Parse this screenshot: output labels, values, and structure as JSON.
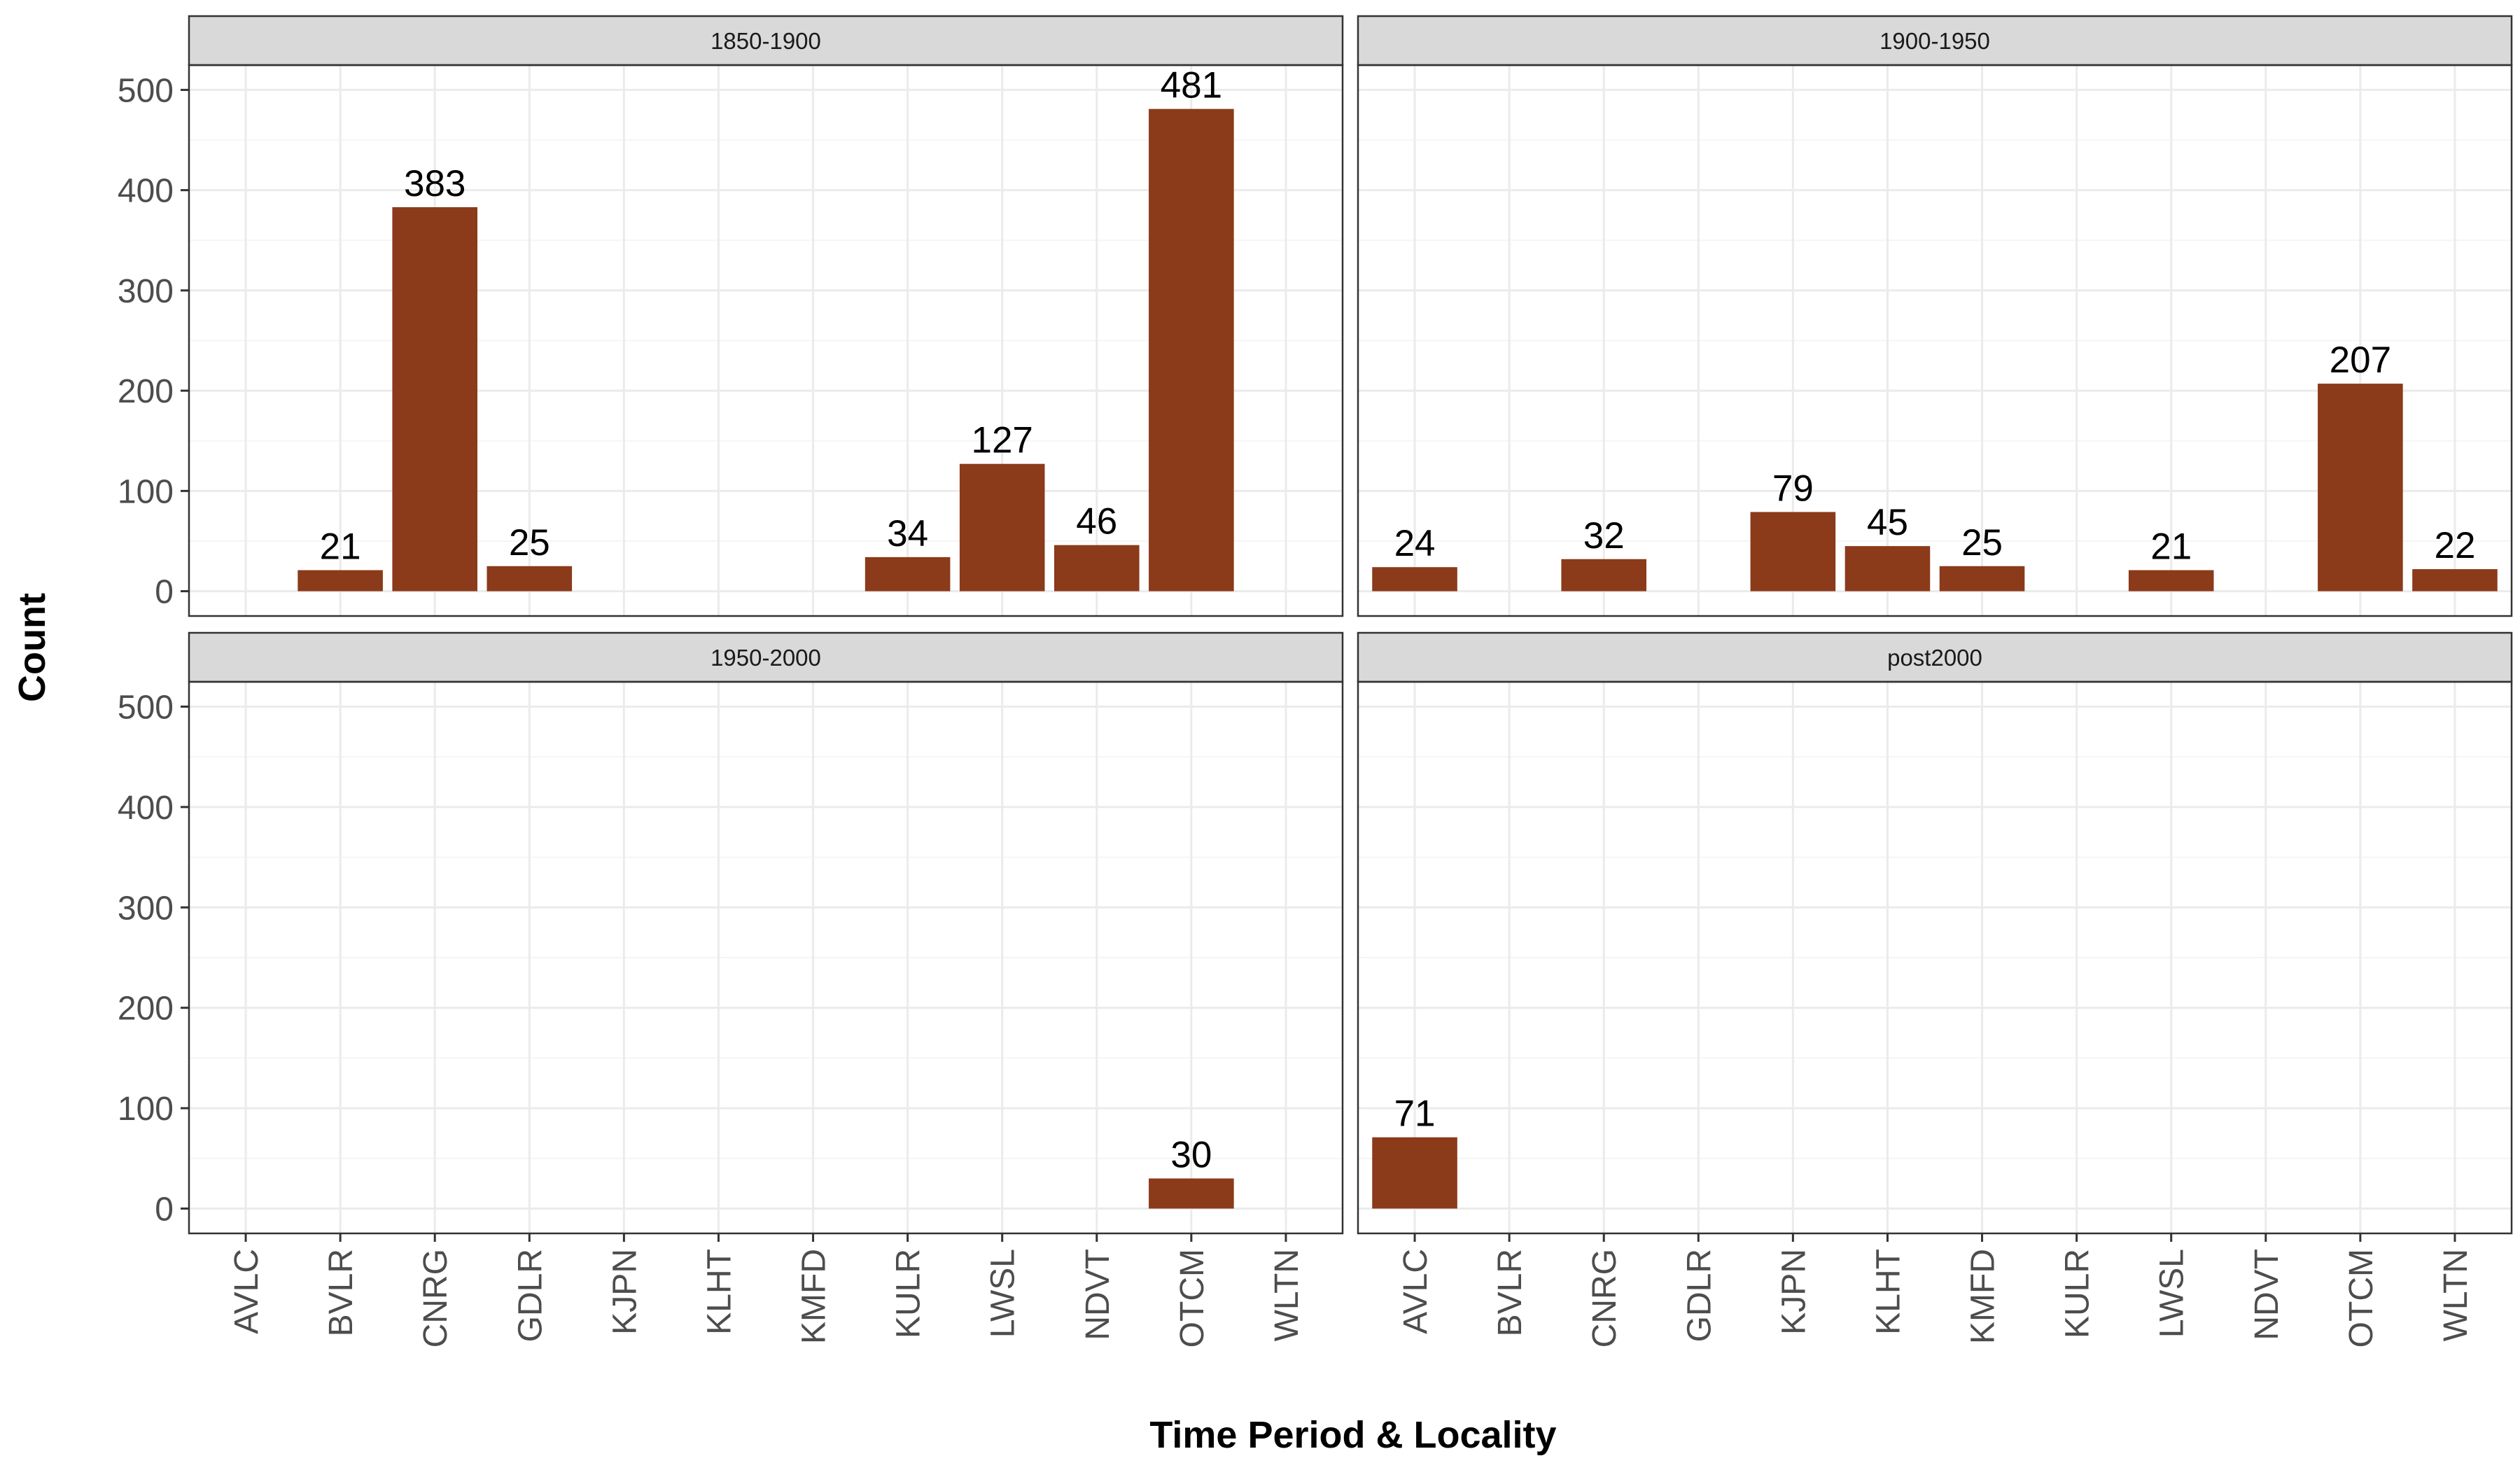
{
  "chart_data": {
    "type": "bar",
    "facet_layout": "2x2 grid, shared axes",
    "xlabel": "Time Period & Locality",
    "ylabel": "Count",
    "ylim": [
      0,
      500
    ],
    "y_ticks": [
      0,
      100,
      200,
      300,
      400,
      500
    ],
    "grid": true,
    "legend": "none",
    "categories": [
      "AVLC",
      "BVLR",
      "CNRG",
      "GDLR",
      "KJPN",
      "KLHT",
      "KMFD",
      "KULR",
      "LWSL",
      "NDVT",
      "OTCM",
      "WLTN"
    ],
    "panels": [
      {
        "strip": "1850-1900",
        "values": [
          null,
          21,
          383,
          25,
          null,
          null,
          null,
          34,
          127,
          46,
          481,
          null
        ],
        "labels": [
          "",
          "21",
          "383",
          "25",
          "",
          "",
          "",
          "34",
          "127",
          "46",
          "481",
          ""
        ]
      },
      {
        "strip": "1900-1950",
        "values": [
          24,
          null,
          32,
          null,
          79,
          45,
          25,
          null,
          21,
          null,
          207,
          22
        ],
        "labels": [
          "24",
          "",
          "32",
          "",
          "79",
          "45",
          "25",
          "",
          "21",
          "",
          "207",
          "22"
        ]
      },
      {
        "strip": "1950-2000",
        "values": [
          null,
          null,
          null,
          null,
          null,
          null,
          null,
          null,
          null,
          null,
          30,
          null
        ],
        "labels": [
          "",
          "",
          "",
          "",
          "",
          "",
          "",
          "",
          "",
          "",
          "30",
          ""
        ]
      },
      {
        "strip": "post2000",
        "values": [
          71,
          null,
          null,
          null,
          null,
          null,
          null,
          null,
          null,
          null,
          null,
          null
        ],
        "labels": [
          "71",
          "",
          "",
          "",
          "",
          "",
          "",
          "",
          "",
          "",
          "",
          ""
        ]
      }
    ]
  },
  "colors": {
    "bar_fill": "#8B3A1A",
    "strip_fill": "#D9D9D9",
    "panel_border": "#333333",
    "grid_major": "#EBEBEB",
    "grid_minor": "#F5F5F5",
    "tick_text": "#4D4D4D"
  }
}
